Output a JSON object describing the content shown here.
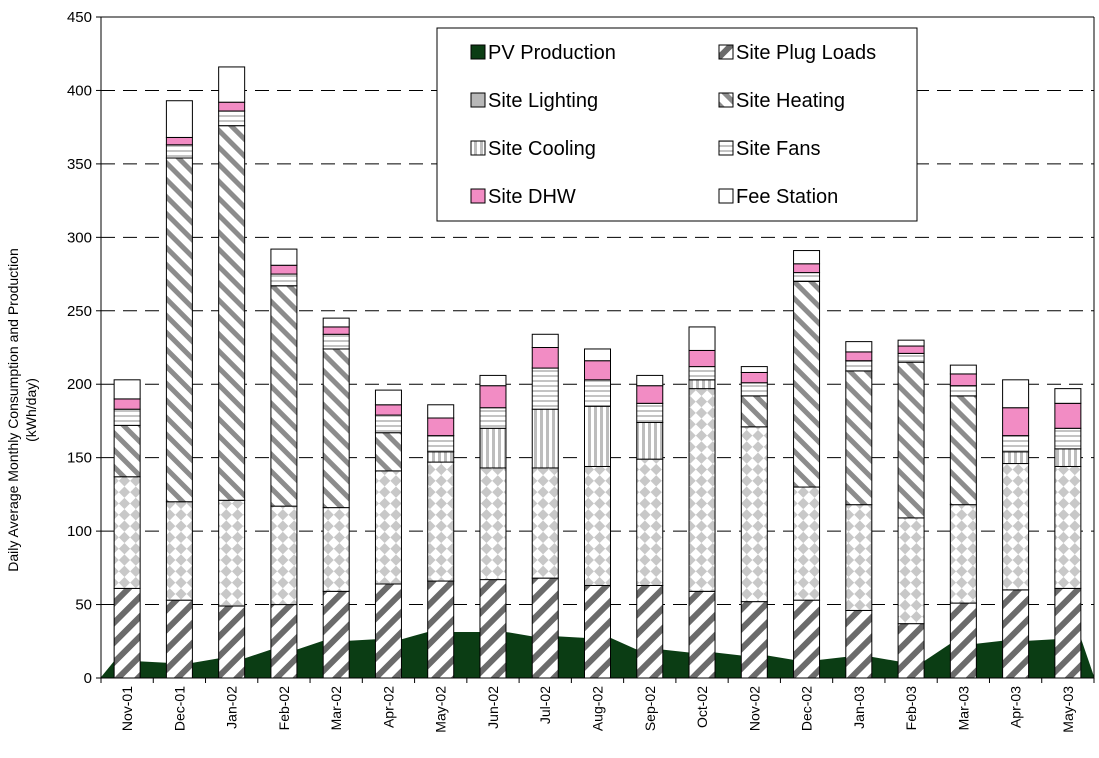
{
  "chart_data": {
    "type": "bar",
    "stacked": true,
    "title": "",
    "xlabel": "",
    "ylabel": "Daily Average Monthly Consumption and Production",
    "ylabel2": "(kWh/day)",
    "ylim": [
      0,
      450
    ],
    "yticks": [
      0,
      50,
      100,
      150,
      200,
      250,
      300,
      350,
      400,
      450
    ],
    "grid": "horizontal dashed",
    "legend_position": "top-center",
    "categories": [
      "Nov-01",
      "Dec-01",
      "Jan-02",
      "Feb-02",
      "Mar-02",
      "Apr-02",
      "May-02",
      "Jun-02",
      "Jul-02",
      "Aug-02",
      "Sep-02",
      "Oct-02",
      "Nov-02",
      "Dec-02",
      "Jan-03",
      "Feb-03",
      "Mar-03",
      "Apr-03",
      "May-03"
    ],
    "pv_production": {
      "name": "PV Production",
      "color": "#0b3d14",
      "values": [
        11,
        10,
        13,
        19,
        25,
        26,
        31,
        31,
        28,
        27,
        19,
        17,
        15,
        12,
        14,
        11,
        23,
        25,
        26
      ]
    },
    "series": [
      {
        "name": "Site Plug Loads",
        "pattern": "diag",
        "values": [
          61,
          53,
          49,
          50,
          59,
          64,
          66,
          67,
          68,
          63,
          63,
          59,
          52,
          53,
          46,
          37,
          51,
          60,
          61
        ]
      },
      {
        "name": "Site Lighting",
        "pattern": "checker",
        "values": [
          76,
          67,
          72,
          67,
          57,
          77,
          81,
          76,
          75,
          81,
          86,
          138,
          119,
          77,
          72,
          72,
          67,
          86,
          83
        ]
      },
      {
        "name": "Site Heating",
        "pattern": "diagheat",
        "values": [
          35,
          234,
          255,
          150,
          108,
          26,
          0,
          0,
          0,
          0,
          0,
          0,
          21,
          140,
          91,
          106,
          74,
          0,
          0
        ]
      },
      {
        "name": "Site Cooling",
        "pattern": "vstripe",
        "values": [
          0,
          0,
          0,
          0,
          0,
          0,
          7,
          27,
          40,
          41,
          25,
          6,
          0,
          0,
          0,
          0,
          0,
          8,
          12
        ]
      },
      {
        "name": "Site Fans",
        "pattern": "hstripe",
        "values": [
          11,
          9,
          10,
          8,
          10,
          12,
          11,
          14,
          28,
          18,
          13,
          9,
          9,
          6,
          7,
          6,
          7,
          11,
          14
        ]
      },
      {
        "name": "Site DHW",
        "pattern": "pink",
        "values": [
          7,
          5,
          6,
          6,
          5,
          7,
          12,
          15,
          14,
          13,
          12,
          11,
          7,
          6,
          6,
          5,
          8,
          19,
          17
        ]
      },
      {
        "name": "Fee Station",
        "pattern": "white",
        "values": [
          13,
          25,
          24,
          11,
          6,
          10,
          9,
          7,
          9,
          8,
          7,
          16,
          4,
          9,
          7,
          4,
          6,
          19,
          10
        ]
      }
    ],
    "legend": [
      {
        "name": "PV Production",
        "pattern": "dark"
      },
      {
        "name": "Site Plug Loads",
        "pattern": "diag"
      },
      {
        "name": "Site Lighting",
        "pattern": "gray"
      },
      {
        "name": "Site Heating",
        "pattern": "diagheat"
      },
      {
        "name": "Site Cooling",
        "pattern": "vstripe"
      },
      {
        "name": "Site Fans",
        "pattern": "hstripe"
      },
      {
        "name": "Site DHW",
        "pattern": "pink"
      },
      {
        "name": "Fee Station",
        "pattern": "white"
      }
    ]
  }
}
